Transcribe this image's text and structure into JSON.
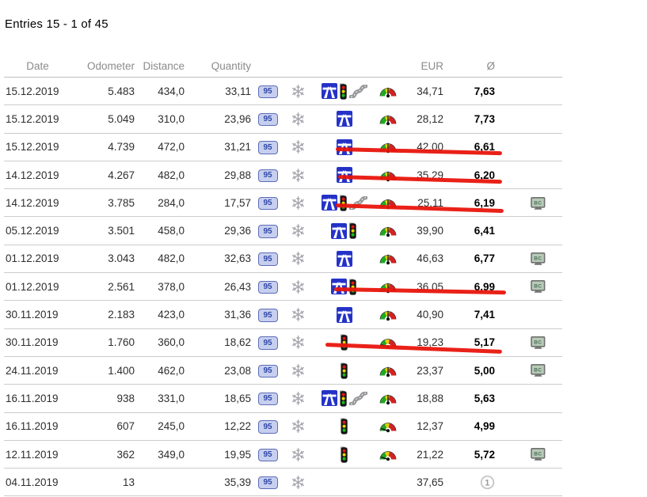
{
  "title": "Entries 15 - 1 of 45",
  "table": {
    "headers": {
      "date": "Date",
      "odometer": "Odometer",
      "distance": "Distance",
      "quantity": "Quantity",
      "eur": "EUR",
      "avg": "Ø"
    },
    "rows": [
      {
        "date": "15.12.2019",
        "odometer": "5.483",
        "distance": "434,0",
        "quantity": "33,11",
        "fuel": "95",
        "winter": true,
        "roads": [
          "motorway",
          "traffic-light",
          "curvy-road"
        ],
        "gauge": "up",
        "eur": "34,71",
        "avg": "7,63",
        "bc": false,
        "first_fill": false,
        "red_underline": false
      },
      {
        "date": "15.12.2019",
        "odometer": "5.049",
        "distance": "310,0",
        "quantity": "23,96",
        "fuel": "95",
        "winter": true,
        "roads": [
          "motorway"
        ],
        "gauge": "up",
        "eur": "28,12",
        "avg": "7,73",
        "bc": false,
        "first_fill": false,
        "red_underline": true
      },
      {
        "date": "15.12.2019",
        "odometer": "4.739",
        "distance": "472,0",
        "quantity": "31,21",
        "fuel": "95",
        "winter": true,
        "roads": [
          "motorway"
        ],
        "gauge": "up",
        "eur": "42,00",
        "avg": "6,61",
        "bc": false,
        "first_fill": false,
        "red_underline": true
      },
      {
        "date": "14.12.2019",
        "odometer": "4.267",
        "distance": "482,0",
        "quantity": "29,88",
        "fuel": "95",
        "winter": true,
        "roads": [
          "motorway"
        ],
        "gauge": "up",
        "eur": "35,29",
        "avg": "6,20",
        "bc": false,
        "first_fill": false,
        "red_underline": true
      },
      {
        "date": "14.12.2019",
        "odometer": "3.785",
        "distance": "284,0",
        "quantity": "17,57",
        "fuel": "95",
        "winter": true,
        "roads": [
          "motorway",
          "traffic-light",
          "curvy-road"
        ],
        "gauge": "up",
        "eur": "25,11",
        "avg": "6,19",
        "bc": true,
        "first_fill": false,
        "red_underline": false
      },
      {
        "date": "05.12.2019",
        "odometer": "3.501",
        "distance": "458,0",
        "quantity": "29,36",
        "fuel": "95",
        "winter": true,
        "roads": [
          "motorway",
          "traffic-light"
        ],
        "gauge": "up",
        "eur": "39,90",
        "avg": "6,41",
        "bc": false,
        "first_fill": false,
        "red_underline": false
      },
      {
        "date": "01.12.2019",
        "odometer": "3.043",
        "distance": "482,0",
        "quantity": "32,63",
        "fuel": "95",
        "winter": true,
        "roads": [
          "motorway"
        ],
        "gauge": "up",
        "eur": "46,63",
        "avg": "6,77",
        "bc": true,
        "first_fill": false,
        "red_underline": true
      },
      {
        "date": "01.12.2019",
        "odometer": "2.561",
        "distance": "378,0",
        "quantity": "26,43",
        "fuel": "95",
        "winter": true,
        "roads": [
          "motorway",
          "traffic-light"
        ],
        "gauge": "up",
        "eur": "36,05",
        "avg": "6,99",
        "bc": true,
        "first_fill": false,
        "red_underline": false
      },
      {
        "date": "30.11.2019",
        "odometer": "2.183",
        "distance": "423,0",
        "quantity": "31,36",
        "fuel": "95",
        "winter": true,
        "roads": [
          "motorway"
        ],
        "gauge": "up",
        "eur": "40,90",
        "avg": "7,41",
        "bc": false,
        "first_fill": false,
        "red_underline": true
      },
      {
        "date": "30.11.2019",
        "odometer": "1.760",
        "distance": "360,0",
        "quantity": "18,62",
        "fuel": "95",
        "winter": true,
        "roads": [
          "traffic-light"
        ],
        "gauge": "left",
        "eur": "19,23",
        "avg": "5,17",
        "bc": true,
        "first_fill": false,
        "red_underline": false
      },
      {
        "date": "24.11.2019",
        "odometer": "1.400",
        "distance": "462,0",
        "quantity": "23,08",
        "fuel": "95",
        "winter": true,
        "roads": [
          "traffic-light"
        ],
        "gauge": "up",
        "eur": "23,37",
        "avg": "5,00",
        "bc": true,
        "first_fill": false,
        "red_underline": false
      },
      {
        "date": "16.11.2019",
        "odometer": "938",
        "distance": "331,0",
        "quantity": "18,65",
        "fuel": "95",
        "winter": true,
        "roads": [
          "motorway",
          "traffic-light",
          "curvy-road"
        ],
        "gauge": "up",
        "eur": "18,88",
        "avg": "5,63",
        "bc": false,
        "first_fill": false,
        "red_underline": false
      },
      {
        "date": "16.11.2019",
        "odometer": "607",
        "distance": "245,0",
        "quantity": "12,22",
        "fuel": "95",
        "winter": true,
        "roads": [
          "traffic-light"
        ],
        "gauge": "left",
        "eur": "12,37",
        "avg": "4,99",
        "bc": false,
        "first_fill": false,
        "red_underline": false
      },
      {
        "date": "12.11.2019",
        "odometer": "362",
        "distance": "349,0",
        "quantity": "19,95",
        "fuel": "95",
        "winter": true,
        "roads": [
          "traffic-light"
        ],
        "gauge": "left",
        "eur": "21,22",
        "avg": "5,72",
        "bc": true,
        "first_fill": false,
        "red_underline": false
      },
      {
        "date": "04.11.2019",
        "odometer": "13",
        "distance": "",
        "quantity": "35,39",
        "fuel": "95",
        "winter": true,
        "roads": [],
        "gauge": "",
        "eur": "37,65",
        "avg": "",
        "bc": false,
        "first_fill": true,
        "red_underline": false
      }
    ]
  },
  "icons": {
    "fuel_badge_label": "95",
    "bc_label": "BC",
    "first_fill_label": "1"
  },
  "annotations": {
    "red_underlined_rows": [
      2,
      3,
      4,
      7,
      9
    ]
  },
  "colors": {
    "annotation_red": "#e8150c",
    "badge_bg": "#c7cfef",
    "badge_border": "#5b6cb8",
    "badge_text": "#2f47a8",
    "motorway_blue": "#2432c8",
    "gauge_green": "#1faa1f",
    "gauge_yellow": "#e0d000",
    "gauge_red": "#d22222",
    "header_text": "#8b8b8b",
    "row_border": "#cccccc"
  }
}
